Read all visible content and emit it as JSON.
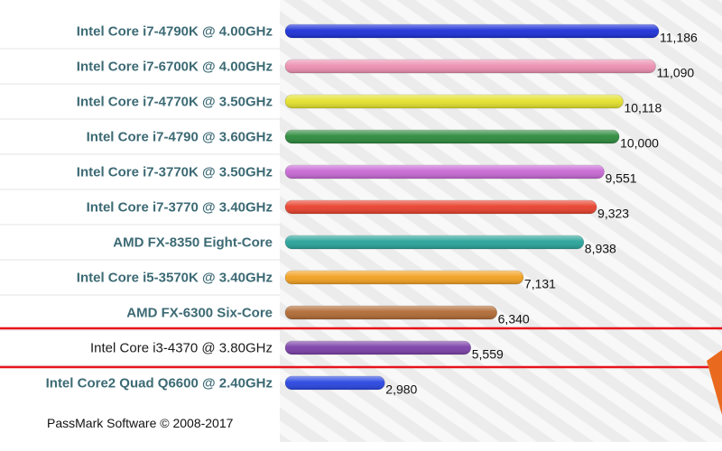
{
  "chart_data": {
    "type": "bar",
    "orientation": "horizontal",
    "categories": [
      "Intel Core i7-4790K @ 4.00GHz",
      "Intel Core i7-6700K @ 4.00GHz",
      "Intel Core i7-4770K @ 3.50GHz",
      "Intel Core i7-4790 @ 3.60GHz",
      "Intel Core i7-3770K @ 3.50GHz",
      "Intel Core i7-3770 @ 3.40GHz",
      "AMD FX-8350 Eight-Core",
      "Intel Core i5-3570K @ 3.40GHz",
      "AMD FX-6300 Six-Core",
      "Intel Core i3-4370 @ 3.80GHz",
      "Intel Core2 Quad Q6600 @ 2.40GHz"
    ],
    "values": [
      11186,
      11090,
      10118,
      10000,
      9551,
      9323,
      8938,
      7131,
      6340,
      5559,
      2980
    ],
    "value_labels": [
      "11,186",
      "11,090",
      "10,118",
      "10,000",
      "9,551",
      "9,323",
      "8,938",
      "7,131",
      "6,340",
      "5,559",
      "2,980"
    ],
    "colors": [
      "#1b2fd6",
      "#ec8fb0",
      "#e3e02c",
      "#2c8a3c",
      "#c768d4",
      "#e8402c",
      "#27a39a",
      "#f2a020",
      "#b06a34",
      "#7a3fa8",
      "#2845e0"
    ],
    "highlight_index": 9,
    "highlight_color": "#e8141c",
    "xlim": [
      0,
      11186
    ],
    "grid": false,
    "title": "",
    "xlabel": "",
    "ylabel": ""
  },
  "footer": {
    "copyright": "PassMark Software © 2008-2017"
  }
}
